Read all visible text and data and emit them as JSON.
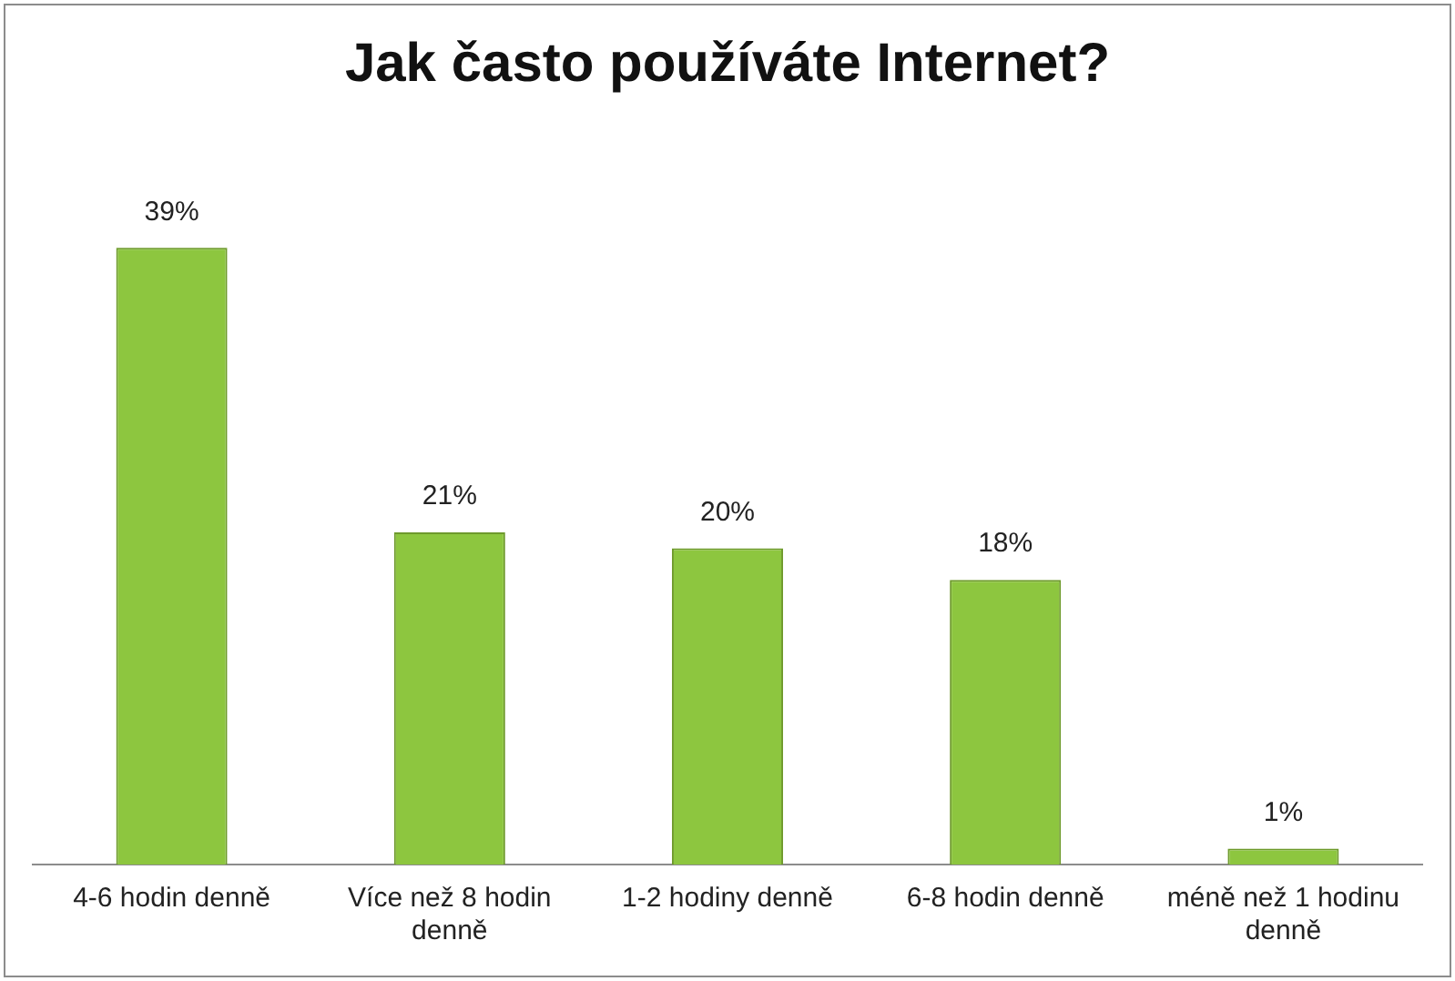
{
  "chart_data": {
    "type": "bar",
    "title": "Jak často používáte Internet?",
    "categories": [
      "4-6 hodin denně",
      "Více než 8 hodin denně",
      "1-2 hodiny denně",
      "6-8 hodin denně",
      "méně než 1 hodinu denně"
    ],
    "values": [
      39,
      21,
      20,
      18,
      1
    ],
    "value_labels": [
      "39%",
      "21%",
      "20%",
      "18%",
      "1%"
    ],
    "color": "#8dc63f",
    "grid": false,
    "legend": false
  }
}
